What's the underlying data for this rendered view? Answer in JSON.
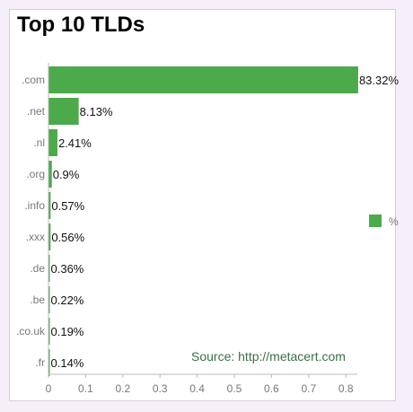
{
  "colors": {
    "bar": "#4caa4a",
    "axis": "#bbbbbb",
    "page_background": "#f6eef8"
  },
  "chart_data": {
    "type": "bar",
    "orientation": "horizontal",
    "title": "Top 10 TLDs",
    "categories": [
      ".com",
      ".net",
      ".nl",
      ".org",
      ".info",
      ".xxx",
      ".de",
      ".be",
      ".co.uk",
      ".fr"
    ],
    "values": [
      0.8332,
      0.0813,
      0.0241,
      0.009,
      0.0057,
      0.0056,
      0.0036,
      0.0022,
      0.0019,
      0.0014
    ],
    "value_labels": [
      "83.32%",
      "8.13%",
      "2.41%",
      "0.9%",
      "0.57%",
      "0.56%",
      "0.36%",
      "0.22%",
      "0.19%",
      "0.14%"
    ],
    "xlim": [
      0,
      0.85
    ],
    "xticks": [
      "0",
      "0.1",
      "0.2",
      "0.3",
      "0.4",
      "0.5",
      "0.6",
      "0.7",
      "0.8"
    ],
    "legend": [
      {
        "label": "%",
        "color": "#4caa4a"
      }
    ],
    "legend_position": "right",
    "grid": false,
    "annotation": "Source: http://metacert.com"
  }
}
